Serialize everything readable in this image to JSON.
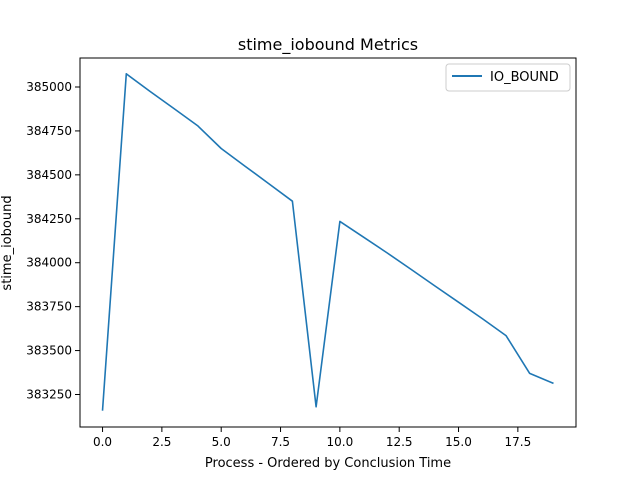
{
  "chart_data": {
    "type": "line",
    "title": "stime_iobound Metrics",
    "xlabel": "Process - Ordered by Conclusion Time",
    "ylabel": "stime_iobound",
    "xlim": [
      -0.95,
      19.95
    ],
    "ylim": [
      383065,
      385165
    ],
    "x_ticks": [
      0.0,
      2.5,
      5.0,
      7.5,
      10.0,
      12.5,
      15.0,
      17.5
    ],
    "x_tick_labels": [
      "0.0",
      "2.5",
      "5.0",
      "7.5",
      "10.0",
      "12.5",
      "15.0",
      "17.5"
    ],
    "y_ticks": [
      383250,
      383500,
      383750,
      384000,
      384250,
      384500,
      384750,
      385000
    ],
    "y_tick_labels": [
      "383250",
      "383500",
      "383750",
      "384000",
      "384250",
      "384500",
      "384750",
      "385000"
    ],
    "grid": false,
    "legend_position": "top-right",
    "series": [
      {
        "name": "IO_BOUND",
        "color": "#1f77b4",
        "x": [
          0,
          1,
          2,
          3,
          4,
          5,
          6,
          7,
          8,
          9,
          10,
          11,
          12,
          13,
          14,
          15,
          16,
          17,
          18,
          19
        ],
        "values": [
          383158,
          385075,
          384975,
          384878,
          384780,
          384650,
          384550,
          384450,
          384350,
          383180,
          384235,
          384145,
          384055,
          383962,
          383868,
          383775,
          383682,
          383585,
          383370,
          383313
        ]
      }
    ]
  }
}
